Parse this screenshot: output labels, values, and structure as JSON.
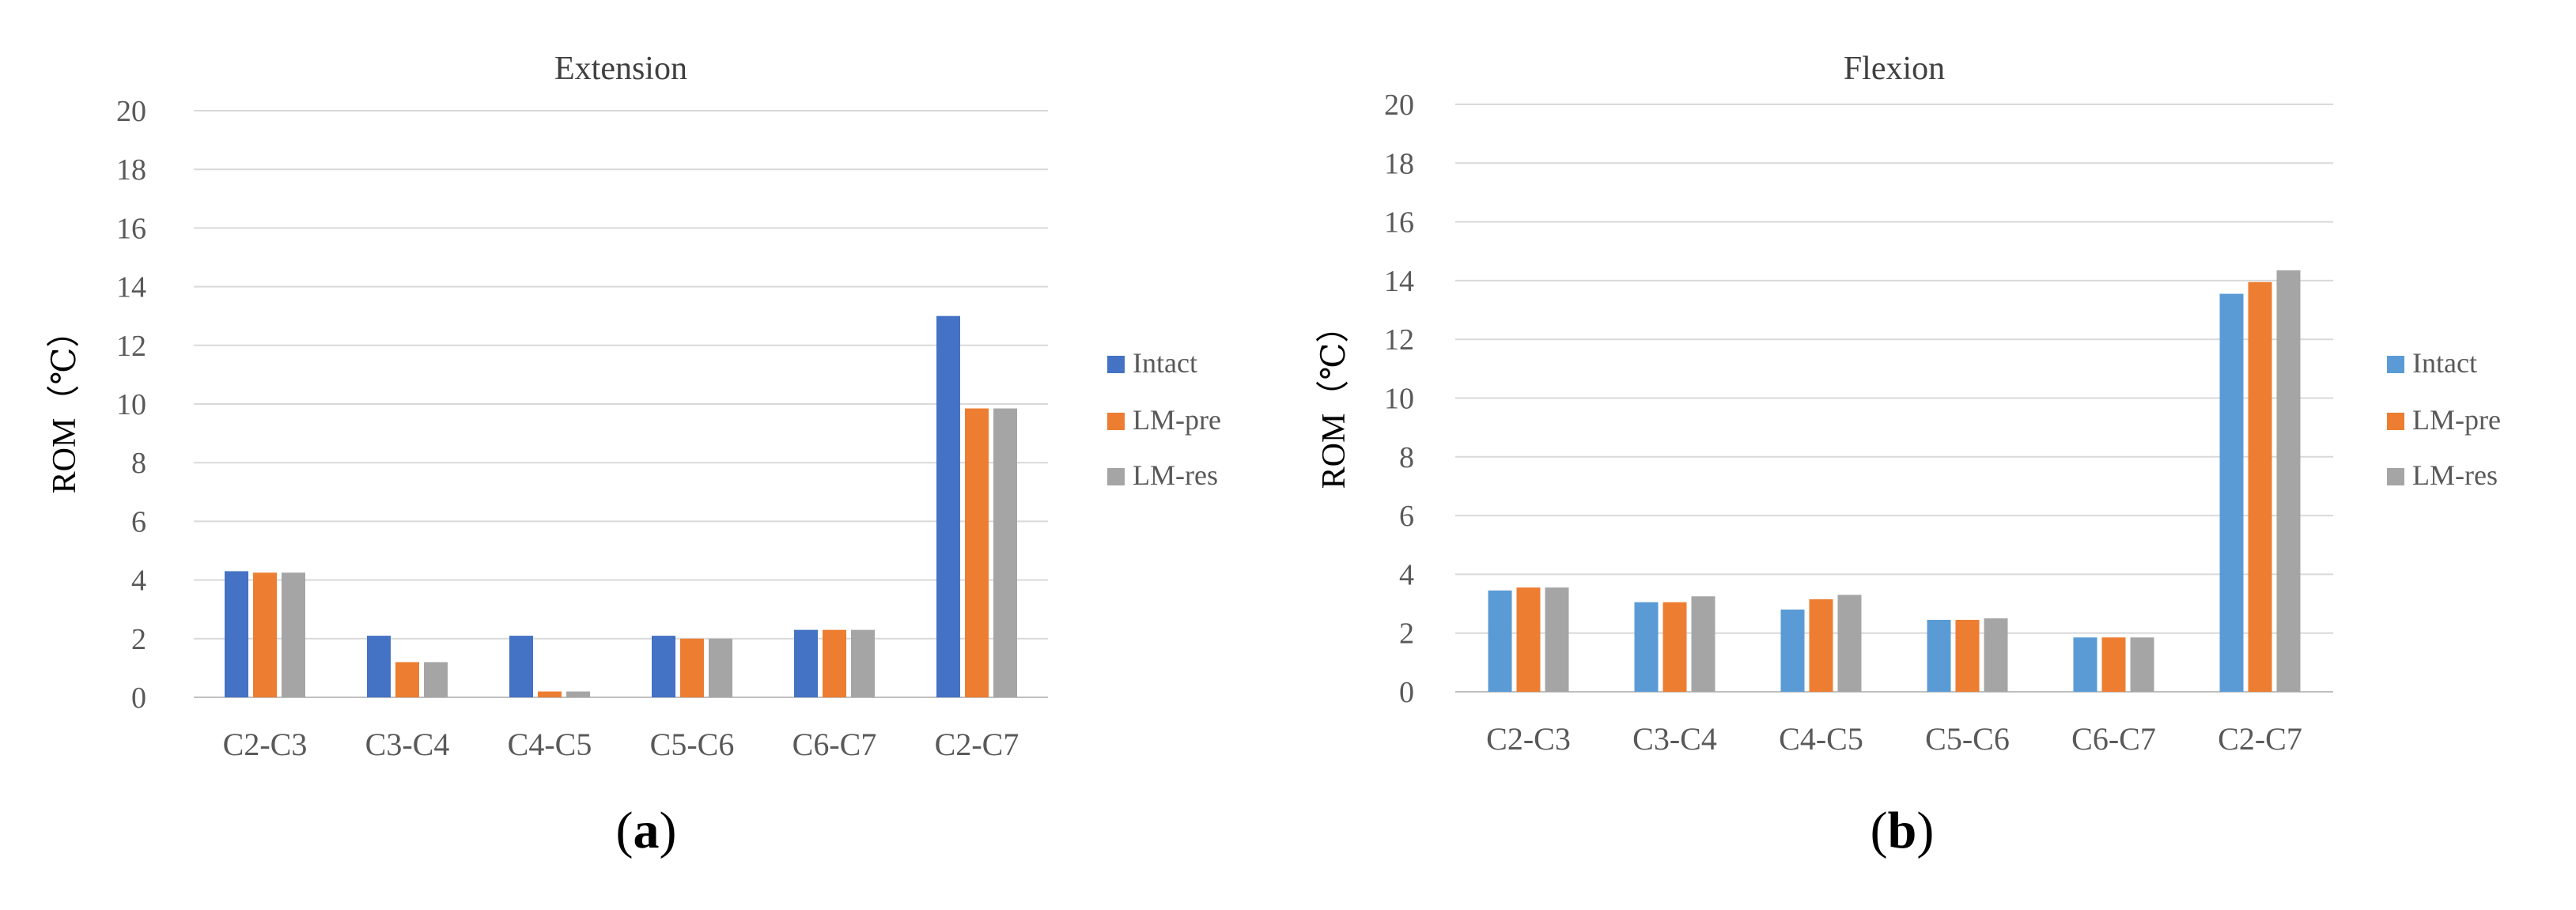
{
  "chart_data": [
    {
      "type": "bar",
      "panel": "(a)",
      "panel_letter": "a",
      "title": "Extension",
      "xlabel": "",
      "ylabel": "ROM（℃）",
      "ylim": [
        0,
        20
      ],
      "yticks": [
        "0",
        "2",
        "4",
        "6",
        "8",
        "10",
        "12",
        "14",
        "16",
        "18",
        "20"
      ],
      "grid": true,
      "legend_position": "right",
      "categories": [
        "C2-C3",
        "C3-C4",
        "C4-C5",
        "C5-C6",
        "C6-C7",
        "C2-C7"
      ],
      "series": [
        {
          "name": "Intact",
          "color": "#4472C4",
          "values": [
            4.3,
            2.1,
            2.1,
            2.1,
            2.3,
            13.0
          ]
        },
        {
          "name": "LM-pre",
          "color": "#ED7D31",
          "values": [
            4.25,
            1.2,
            0.2,
            2.0,
            2.3,
            9.85
          ]
        },
        {
          "name": "LM-res",
          "color": "#A5A5A5",
          "values": [
            4.25,
            1.2,
            0.2,
            2.0,
            2.3,
            9.85
          ]
        }
      ]
    },
    {
      "type": "bar",
      "panel": "(b)",
      "panel_letter": "b",
      "title": "Flexion",
      "xlabel": "",
      "ylabel": "ROM（℃）",
      "ylim": [
        0,
        20
      ],
      "yticks": [
        "0",
        "2",
        "4",
        "6",
        "8",
        "10",
        "12",
        "14",
        "16",
        "18",
        "20"
      ],
      "grid": true,
      "legend_position": "right",
      "categories": [
        "C2-C3",
        "C3-C4",
        "C4-C5",
        "C5-C6",
        "C6-C7",
        "C2-C7"
      ],
      "series": [
        {
          "name": "Intact",
          "color": "#5B9BD5",
          "values": [
            3.45,
            3.05,
            2.8,
            2.45,
            1.85,
            13.55
          ]
        },
        {
          "name": "LM-pre",
          "color": "#ED7D31",
          "values": [
            3.55,
            3.05,
            3.15,
            2.45,
            1.85,
            13.95
          ]
        },
        {
          "name": "LM-res",
          "color": "#A5A5A5",
          "values": [
            3.55,
            3.25,
            3.3,
            2.5,
            1.85,
            14.35
          ]
        }
      ]
    }
  ]
}
